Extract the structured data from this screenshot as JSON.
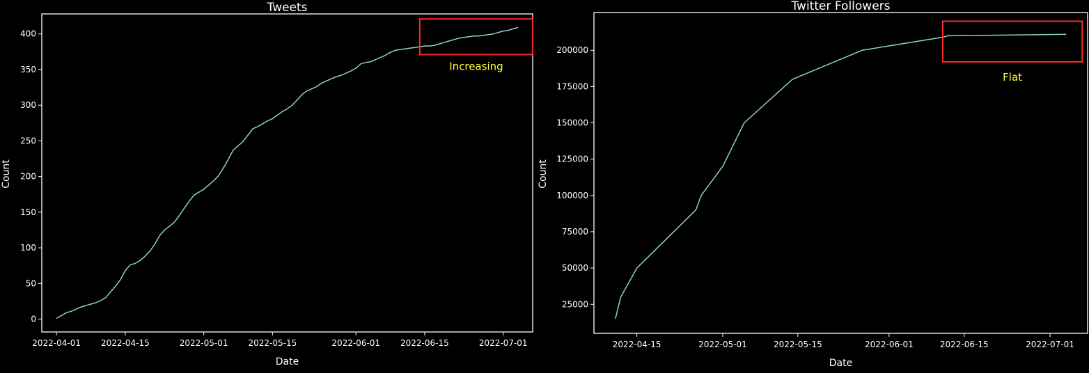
{
  "chart_data": [
    {
      "type": "line",
      "title": "Tweets",
      "xlabel": "Date",
      "ylabel": "Count",
      "xlim": [
        "2022-03-29",
        "2022-07-07"
      ],
      "ylim": [
        -18,
        428
      ],
      "x_ticks": [
        "2022-04-01",
        "2022-04-15",
        "2022-05-01",
        "2022-05-15",
        "2022-06-01",
        "2022-06-15",
        "2022-07-01"
      ],
      "y_ticks": [
        0,
        50,
        100,
        150,
        200,
        250,
        300,
        350,
        400
      ],
      "grid": false,
      "line_color": "#8dd3c7",
      "series": [
        {
          "x": [
            "2022-04-01",
            "2022-04-02",
            "2022-04-03",
            "2022-04-04",
            "2022-04-05",
            "2022-04-06",
            "2022-04-07",
            "2022-04-08",
            "2022-04-09",
            "2022-04-10",
            "2022-04-11",
            "2022-04-12",
            "2022-04-13",
            "2022-04-14",
            "2022-04-15",
            "2022-04-16",
            "2022-04-17",
            "2022-04-18",
            "2022-04-19",
            "2022-04-20",
            "2022-04-21",
            "2022-04-22",
            "2022-04-23",
            "2022-04-24",
            "2022-04-25",
            "2022-04-26",
            "2022-04-27",
            "2022-04-28",
            "2022-04-29",
            "2022-04-30",
            "2022-05-01",
            "2022-05-02",
            "2022-05-03",
            "2022-05-04",
            "2022-05-05",
            "2022-05-06",
            "2022-05-07",
            "2022-05-08",
            "2022-05-09",
            "2022-05-10",
            "2022-05-11",
            "2022-05-12",
            "2022-05-13",
            "2022-05-14",
            "2022-05-15",
            "2022-05-16",
            "2022-05-17",
            "2022-05-18",
            "2022-05-19",
            "2022-05-20",
            "2022-05-21",
            "2022-05-22",
            "2022-05-23",
            "2022-05-24",
            "2022-05-25",
            "2022-05-26",
            "2022-05-27",
            "2022-05-28",
            "2022-05-29",
            "2022-05-30",
            "2022-05-31",
            "2022-06-01",
            "2022-06-02",
            "2022-06-03",
            "2022-06-04",
            "2022-06-05",
            "2022-06-06",
            "2022-06-07",
            "2022-06-08",
            "2022-06-09",
            "2022-06-10",
            "2022-06-11",
            "2022-06-12",
            "2022-06-13",
            "2022-06-14",
            "2022-06-15",
            "2022-06-16",
            "2022-06-17",
            "2022-06-18",
            "2022-06-19",
            "2022-06-20",
            "2022-06-21",
            "2022-06-22",
            "2022-06-23",
            "2022-06-24",
            "2022-06-25",
            "2022-06-26",
            "2022-06-27",
            "2022-06-28",
            "2022-06-29",
            "2022-06-30",
            "2022-07-01",
            "2022-07-02",
            "2022-07-03",
            "2022-07-04"
          ],
          "y": [
            1,
            5,
            9,
            11,
            14,
            17,
            19,
            21,
            23,
            26,
            30,
            38,
            46,
            55,
            68,
            76,
            78,
            82,
            88,
            95,
            105,
            117,
            125,
            130,
            136,
            145,
            155,
            165,
            174,
            178,
            182,
            188,
            194,
            201,
            212,
            224,
            237,
            243,
            249,
            258,
            267,
            270,
            274,
            278,
            281,
            286,
            291,
            295,
            300,
            307,
            315,
            320,
            323,
            326,
            331,
            334,
            337,
            340,
            342,
            345,
            348,
            352,
            358,
            360,
            361,
            364,
            367,
            370,
            374,
            377,
            378,
            379,
            380,
            381,
            382,
            383,
            383,
            384,
            386,
            388,
            390,
            392,
            394,
            395,
            396,
            397,
            397,
            398,
            399,
            400,
            402,
            404,
            405,
            407,
            409
          ]
        }
      ],
      "annotation": {
        "text": "Increasing",
        "color": "#ffff33",
        "box_color": "#ff2a2a",
        "box_x": [
          "2022-06-14",
          "2022-07-07"
        ],
        "box_y": [
          371,
          421
        ]
      }
    },
    {
      "type": "line",
      "title": "Twitter Followers",
      "xlabel": "Date",
      "ylabel": "Count",
      "xlim": [
        "2022-04-07",
        "2022-07-08"
      ],
      "ylim": [
        5000,
        226000
      ],
      "x_ticks": [
        "2022-04-15",
        "2022-05-01",
        "2022-05-15",
        "2022-06-01",
        "2022-06-15",
        "2022-07-01"
      ],
      "y_ticks": [
        25000,
        50000,
        75000,
        100000,
        125000,
        150000,
        175000,
        200000
      ],
      "grid": false,
      "line_color": "#8dd3c7",
      "series": [
        {
          "x": [
            "2022-04-11",
            "2022-04-12",
            "2022-04-15",
            "2022-04-26",
            "2022-04-27",
            "2022-05-01",
            "2022-05-05",
            "2022-05-14",
            "2022-05-27",
            "2022-06-11",
            "2022-06-12",
            "2022-07-04"
          ],
          "y": [
            15000,
            30000,
            50000,
            90000,
            100000,
            120000,
            150000,
            180000,
            200000,
            209000,
            210000,
            211000
          ]
        }
      ],
      "annotation": {
        "text": "Flat",
        "color": "#ffff33",
        "box_color": "#ff2a2a",
        "box_x": [
          "2022-06-11",
          "2022-07-07"
        ],
        "box_y": [
          192000,
          220000
        ]
      }
    }
  ]
}
